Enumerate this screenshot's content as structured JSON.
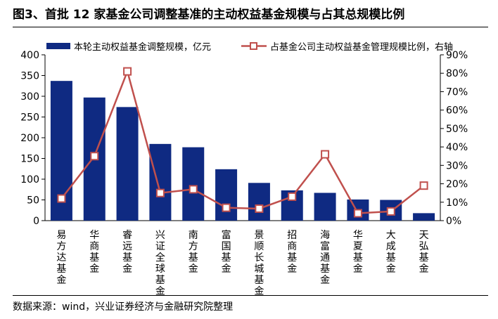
{
  "figure": {
    "title": "图3、首批 12 家基金公司调整基准的主动权益基金规模与占其总规模比例",
    "source": "数据来源：wind，兴业证券经济与金融研究院整理"
  },
  "chart_data": {
    "type": "bar",
    "categories": [
      "易方达基金",
      "华商基金",
      "睿远基金",
      "兴证全球基金",
      "南方基金",
      "富国基金",
      "景顺长城基金",
      "招商基金",
      "海富通基金",
      "华夏基金",
      "大成基金",
      "天弘基金"
    ],
    "series": [
      {
        "name": "本轮主动权益基金调整规模，亿元",
        "type": "bar",
        "axis": "left",
        "color": "#0f2a82",
        "values": [
          337,
          297,
          274,
          185,
          177,
          124,
          91,
          73,
          67,
          51,
          50,
          18
        ]
      },
      {
        "name": "占基金公司主动权益基金管理规模比例，右轴",
        "type": "line",
        "axis": "right",
        "color": "#c0504d",
        "values": [
          12,
          35,
          81,
          15,
          17,
          7,
          6.5,
          13,
          36,
          4,
          5,
          19
        ],
        "unit": "%"
      }
    ],
    "y_left": {
      "ylim": [
        0,
        400
      ],
      "ticks": [
        0,
        50,
        100,
        150,
        200,
        250,
        300,
        350,
        400
      ]
    },
    "y_right": {
      "ylim": [
        0,
        90
      ],
      "ticks": [
        0,
        10,
        20,
        30,
        40,
        50,
        60,
        70,
        80,
        90
      ],
      "tick_format": "%"
    },
    "grid": false,
    "legend_position": "top"
  }
}
